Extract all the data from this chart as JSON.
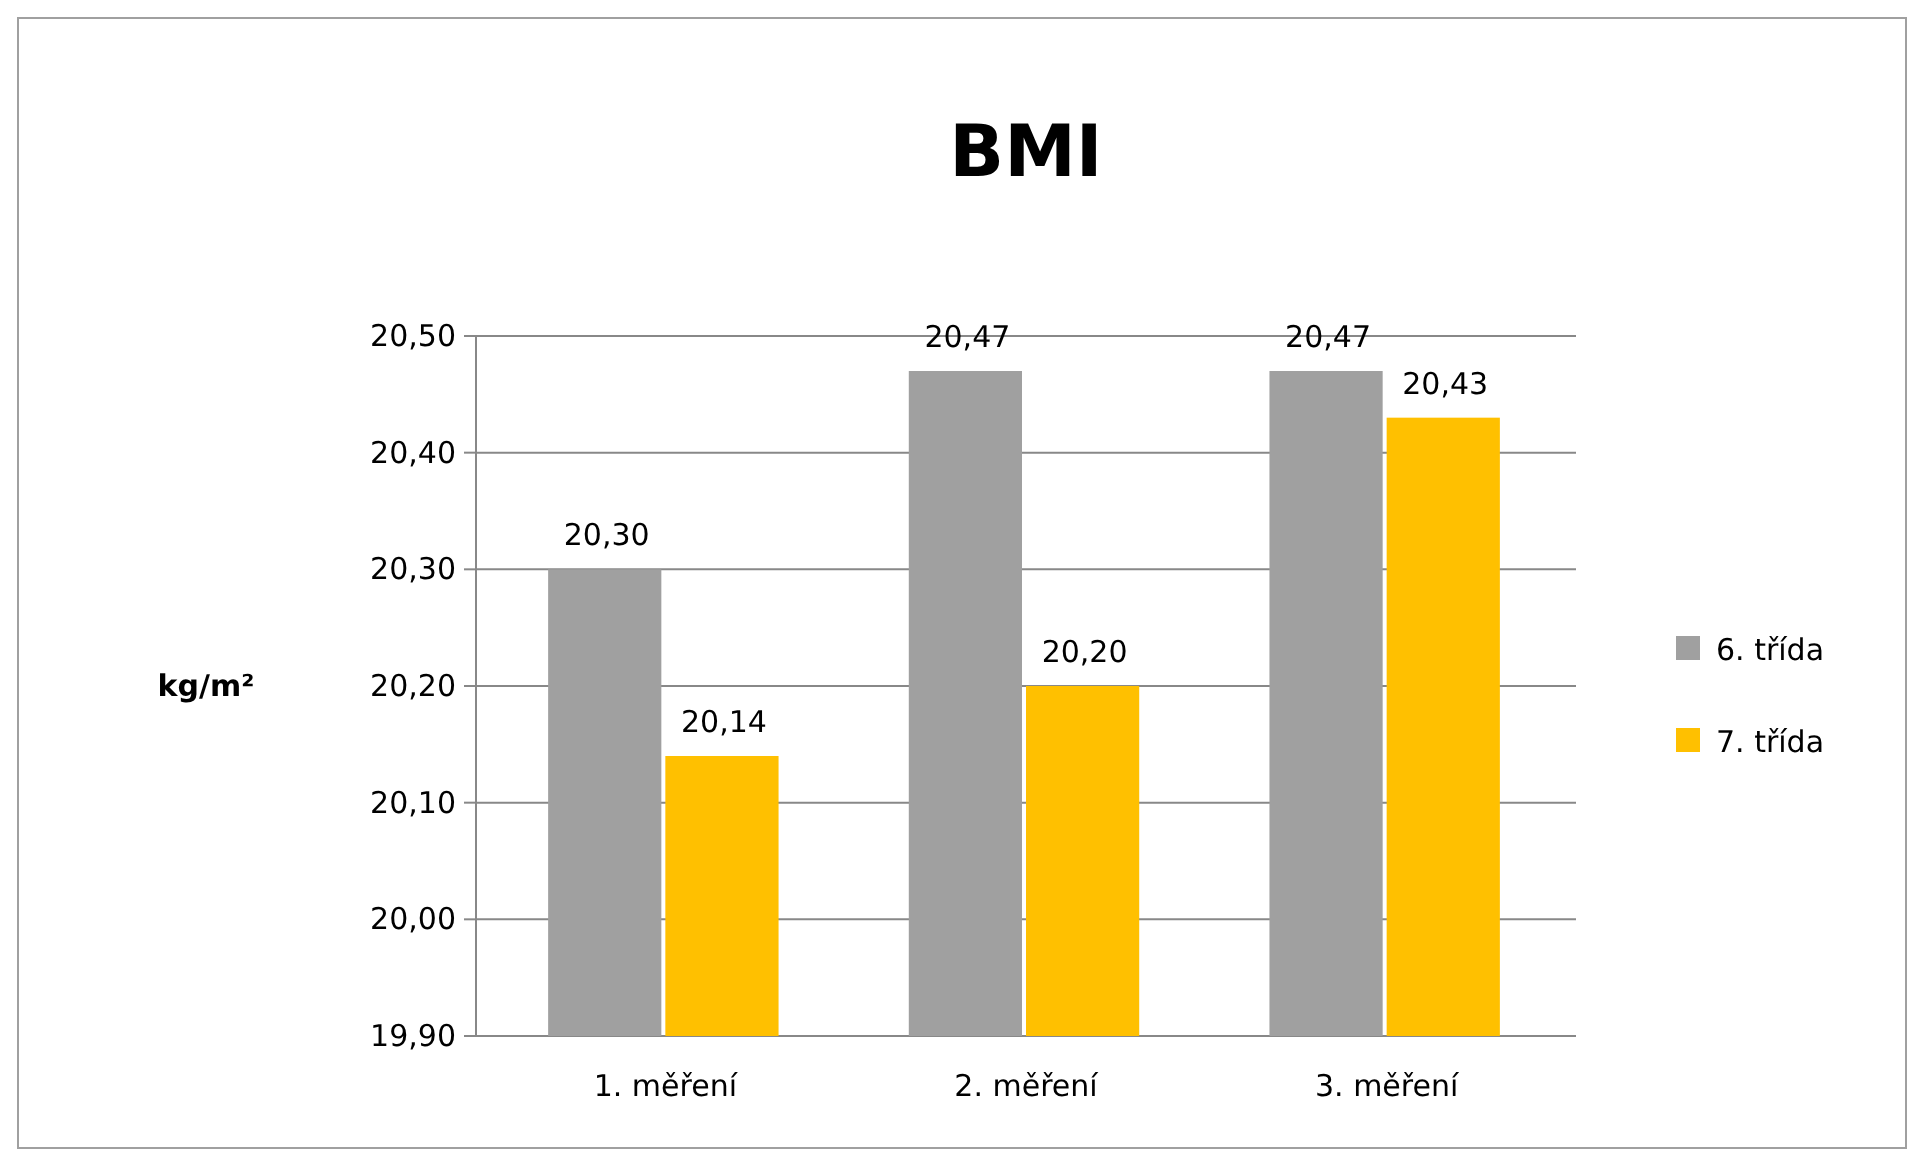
{
  "chart_data": {
    "type": "bar",
    "title": "BMI",
    "ylabel": "kg/m²",
    "categories": [
      "1. měření",
      "2. měření",
      "3. měření"
    ],
    "series": [
      {
        "name": "6. třída",
        "color": "#a0a0a0",
        "values": [
          20.3,
          20.47,
          20.47
        ],
        "value_labels": [
          "20,30",
          "20,47",
          "20,47"
        ]
      },
      {
        "name": "7. třída",
        "color": "#ffc000",
        "values": [
          20.14,
          20.2,
          20.43
        ],
        "value_labels": [
          "20,14",
          "20,20",
          "20,43"
        ]
      }
    ],
    "ylim": [
      19.9,
      20.5
    ],
    "yticks": [
      {
        "value": 19.9,
        "label": "19,90"
      },
      {
        "value": 20.0,
        "label": "20,00"
      },
      {
        "value": 20.1,
        "label": "20,10"
      },
      {
        "value": 20.2,
        "label": "20,20"
      },
      {
        "value": 20.3,
        "label": "20,30"
      },
      {
        "value": 20.4,
        "label": "20,40"
      },
      {
        "value": 20.5,
        "label": "20,50"
      }
    ],
    "grid": "y",
    "legend": "right"
  }
}
